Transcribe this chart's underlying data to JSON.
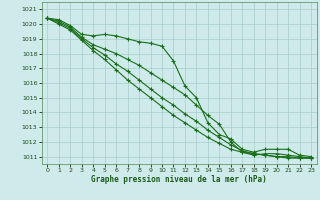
{
  "xlabel": "Graphe pression niveau de la mer (hPa)",
  "xlim": [
    -0.5,
    23.5
  ],
  "ylim": [
    1010.5,
    1021.5
  ],
  "yticks": [
    1011,
    1012,
    1013,
    1014,
    1015,
    1016,
    1017,
    1018,
    1019,
    1020,
    1021
  ],
  "xticks": [
    0,
    1,
    2,
    3,
    4,
    5,
    6,
    7,
    8,
    9,
    10,
    11,
    12,
    13,
    14,
    15,
    16,
    17,
    18,
    19,
    20,
    21,
    22,
    23
  ],
  "bg_color": "#ceeaea",
  "grid_color": "#aacccc",
  "line_color": "#1a6e1a",
  "lines": [
    {
      "x": [
        0,
        1,
        2,
        3,
        4,
        5,
        6,
        7,
        8,
        9,
        10,
        11,
        12,
        13,
        14,
        15,
        16,
        17,
        18,
        19,
        20,
        21,
        22,
        23
      ],
      "y": [
        1020.4,
        1020.3,
        1019.9,
        1019.3,
        1019.2,
        1019.3,
        1019.2,
        1019.0,
        1018.8,
        1018.7,
        1018.5,
        1017.5,
        1015.8,
        1015.0,
        1013.3,
        1012.5,
        1012.2,
        1011.5,
        1011.3,
        1011.5,
        1011.5,
        1011.5,
        1011.1,
        1011.0
      ]
    },
    {
      "x": [
        0,
        1,
        2,
        3,
        4,
        5,
        6,
        7,
        8,
        9,
        10,
        11,
        12,
        13,
        14,
        15,
        16,
        17,
        18,
        19,
        20,
        21,
        22,
        23
      ],
      "y": [
        1020.4,
        1020.2,
        1019.8,
        1019.1,
        1018.6,
        1018.3,
        1018.0,
        1017.6,
        1017.2,
        1016.7,
        1016.2,
        1015.7,
        1015.2,
        1014.5,
        1013.8,
        1013.2,
        1012.0,
        1011.3,
        1011.1,
        1011.2,
        1011.2,
        1011.1,
        1011.0,
        1010.9
      ]
    },
    {
      "x": [
        0,
        1,
        2,
        3,
        4,
        5,
        6,
        7,
        8,
        9,
        10,
        11,
        12,
        13,
        14,
        15,
        16,
        17,
        18,
        19,
        20,
        21,
        22,
        23
      ],
      "y": [
        1020.4,
        1020.1,
        1019.7,
        1019.0,
        1018.4,
        1017.9,
        1017.3,
        1016.8,
        1016.2,
        1015.6,
        1015.0,
        1014.5,
        1013.9,
        1013.4,
        1012.8,
        1012.3,
        1011.8,
        1011.4,
        1011.2,
        1011.1,
        1011.0,
        1011.0,
        1010.9,
        1010.9
      ]
    },
    {
      "x": [
        0,
        1,
        2,
        3,
        4,
        5,
        6,
        7,
        8,
        9,
        10,
        11,
        12,
        13,
        14,
        15,
        16,
        17,
        18,
        19,
        20,
        21,
        22,
        23
      ],
      "y": [
        1020.4,
        1020.0,
        1019.6,
        1018.9,
        1018.2,
        1017.6,
        1016.9,
        1016.2,
        1015.6,
        1015.0,
        1014.4,
        1013.8,
        1013.3,
        1012.8,
        1012.3,
        1011.9,
        1011.5,
        1011.3,
        1011.2,
        1011.1,
        1011.0,
        1010.9,
        1010.9,
        1010.9
      ]
    }
  ]
}
